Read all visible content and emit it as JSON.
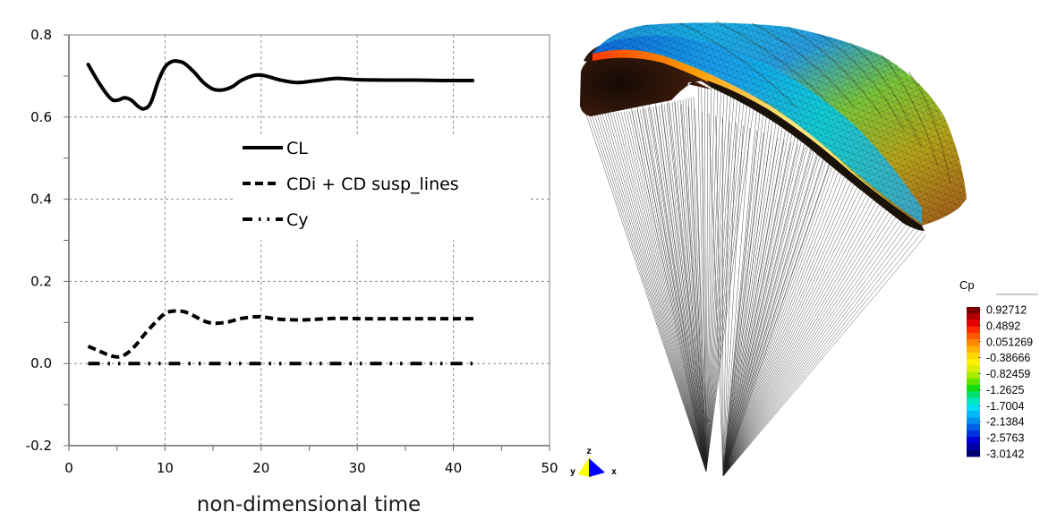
{
  "chart_data": [
    {
      "type": "line",
      "title": "",
      "xlabel": "non-dimensional time",
      "ylabel": "",
      "xlim": [
        0,
        50
      ],
      "ylim": [
        -0.2,
        0.8
      ],
      "xticks": [
        0,
        10,
        20,
        30,
        40,
        50
      ],
      "xtick_labels": [
        "0",
        "10",
        "20",
        "30",
        "40",
        "50"
      ],
      "xminor_ticks": [
        5,
        15,
        25,
        35,
        45
      ],
      "yticks": [
        -0.2,
        0.0,
        0.2,
        0.4,
        0.6,
        0.8
      ],
      "ytick_labels": [
        "-0.2",
        "0.0",
        "0.2",
        "0.4",
        "0.6",
        "0.8"
      ],
      "yminor_ticks": [
        -0.1,
        0.1,
        0.3,
        0.5,
        0.7
      ],
      "grid": true,
      "legend_position": "center",
      "series": [
        {
          "name": "CL",
          "style": "solid",
          "x": [
            2,
            3,
            4,
            4.6,
            5.2,
            5.8,
            6.5,
            7.2,
            7.8,
            8.5,
            9.3,
            10,
            10.7,
            11.3,
            12,
            13,
            14,
            15,
            16,
            17,
            18,
            19.4,
            20.5,
            22,
            23.7,
            25.5,
            27.9,
            30,
            33,
            36,
            39,
            42
          ],
          "y": [
            0.728,
            0.688,
            0.654,
            0.641,
            0.642,
            0.647,
            0.641,
            0.626,
            0.62,
            0.634,
            0.688,
            0.722,
            0.735,
            0.736,
            0.731,
            0.71,
            0.684,
            0.668,
            0.666,
            0.674,
            0.69,
            0.702,
            0.7,
            0.69,
            0.684,
            0.688,
            0.694,
            0.691,
            0.69,
            0.69,
            0.689,
            0.689
          ]
        },
        {
          "name": "CDi + CD susp_lines",
          "style": "dashed",
          "x": [
            2,
            3,
            4,
            5.1,
            6,
            7,
            7.9,
            9,
            10,
            11,
            12,
            13,
            14,
            15.1,
            16.5,
            18,
            19.8,
            21.4,
            22.5,
            24.2,
            26,
            28.2,
            31,
            34,
            37,
            40,
            42.2
          ],
          "y": [
            0.042,
            0.032,
            0.022,
            0.016,
            0.024,
            0.046,
            0.072,
            0.1,
            0.122,
            0.128,
            0.126,
            0.116,
            0.104,
            0.098,
            0.101,
            0.11,
            0.114,
            0.109,
            0.107,
            0.106,
            0.108,
            0.11,
            0.109,
            0.109,
            0.109,
            0.109,
            0.109
          ]
        },
        {
          "name": "Cy",
          "style": "dash-dot-dot",
          "x": [
            2,
            42
          ],
          "y": [
            0.0,
            0.0
          ]
        }
      ]
    },
    {
      "type": "heatmap",
      "title": "Cp",
      "description": "3D paraglider canopy surface pressure coefficient with suspension lines",
      "colorbar": {
        "title": "Cp",
        "min": -3.0142,
        "max": 0.92712,
        "tick_labels": [
          "0.92712",
          "0.4892",
          "0.051269",
          "-0.38666",
          "-0.82459",
          "-1.2625",
          "-1.7004",
          "-2.1384",
          "-2.5763",
          "-3.0142"
        ],
        "colors": [
          "#7a0000",
          "#b30000",
          "#e60000",
          "#ff2a00",
          "#ff5a00",
          "#ff8800",
          "#ffb000",
          "#ffd800",
          "#fff200",
          "#d8f000",
          "#a8ec00",
          "#60e400",
          "#10de10",
          "#00e070",
          "#00e8c0",
          "#00e0f0",
          "#00b8f8",
          "#0090f0",
          "#0060e8",
          "#0030e0",
          "#0000d8",
          "#0000a8",
          "#000070"
        ]
      },
      "axis_triad": {
        "labels": [
          "z",
          "y",
          "x"
        ]
      }
    }
  ]
}
